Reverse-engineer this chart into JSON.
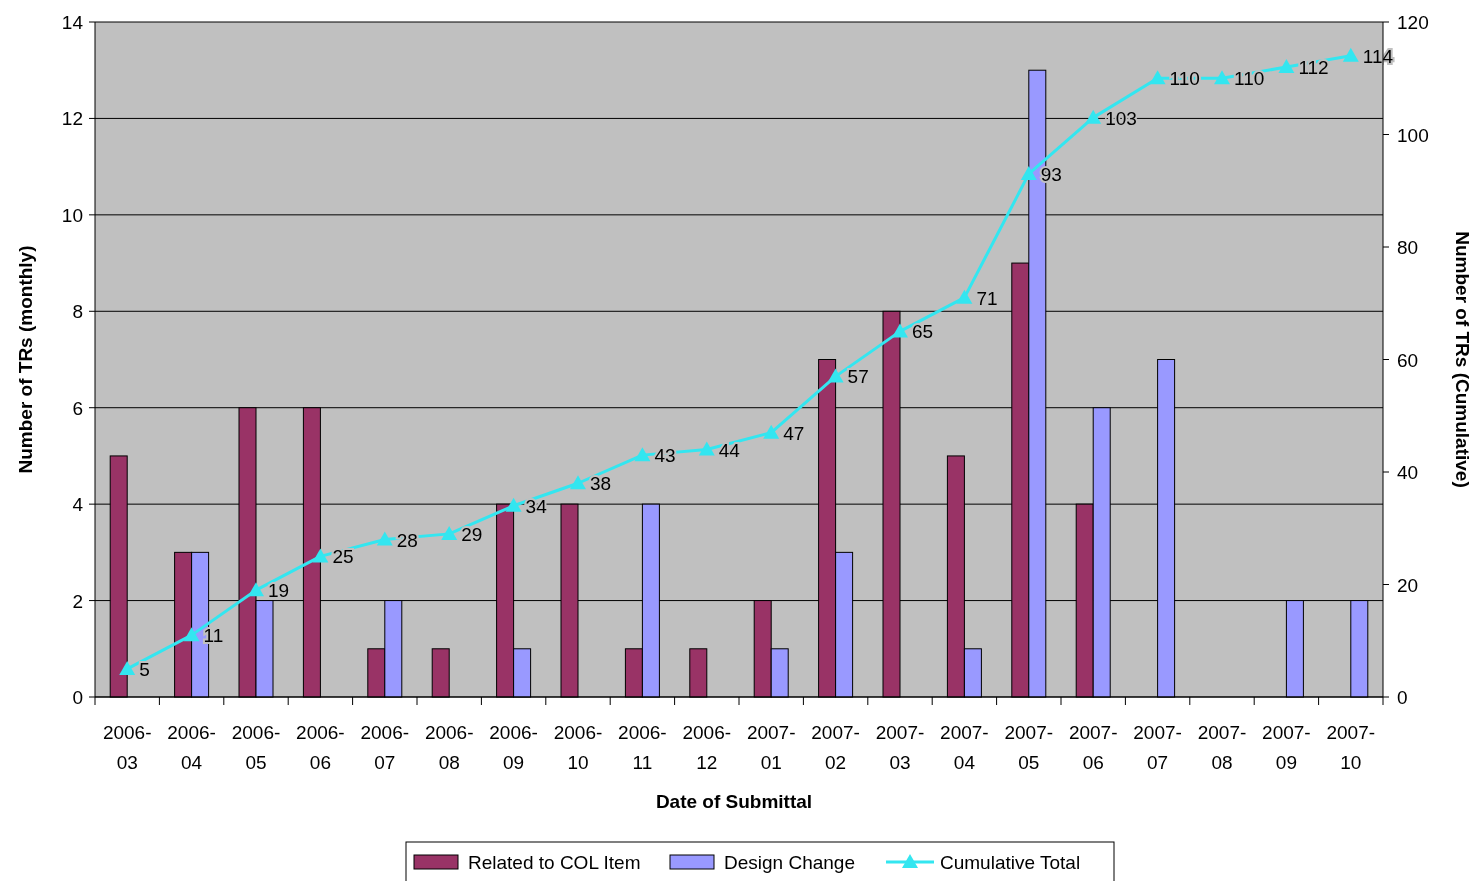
{
  "chart_data": {
    "type": "bar",
    "xlabel": "Date of Submittal",
    "ylabel": "Number of TRs (monthly)",
    "y2label": "Number of TRs (Cumulative)",
    "categories": [
      "2006-03",
      "2006-04",
      "2006-05",
      "2006-06",
      "2006-07",
      "2006-08",
      "2006-09",
      "2006-10",
      "2006-11",
      "2006-12",
      "2007-01",
      "2007-02",
      "2007-03",
      "2007-04",
      "2007-05",
      "2007-06",
      "2007-07",
      "2007-08",
      "2007-09",
      "2007-10"
    ],
    "series": [
      {
        "name": "Related to COL Item",
        "color": "#993366",
        "values": [
          5,
          3,
          6,
          6,
          1,
          1,
          4,
          4,
          1,
          1,
          2,
          7,
          8,
          5,
          9,
          4,
          null,
          null,
          null,
          null
        ]
      },
      {
        "name": "Design Change",
        "color": "#9999ff",
        "values": [
          null,
          3,
          2,
          null,
          2,
          null,
          1,
          null,
          4,
          null,
          1,
          3,
          null,
          1,
          13,
          6,
          7,
          null,
          2,
          2
        ]
      },
      {
        "name": "Cumulative Total",
        "type": "line",
        "axis": "y2",
        "color": "#33e6f0",
        "marker": "triangle",
        "values": [
          5,
          11,
          19,
          25,
          28,
          29,
          34,
          38,
          43,
          44,
          47,
          57,
          65,
          71,
          93,
          103,
          110,
          110,
          112,
          114
        ],
        "value_labels": [
          "5",
          "11",
          "19",
          "25",
          "28",
          "29",
          "34",
          "38",
          "43",
          "44",
          "47",
          "57",
          "65",
          "71",
          "93",
          "103",
          "110",
          "110",
          "112",
          "114"
        ]
      }
    ],
    "ylim": [
      0,
      14
    ],
    "yticks": [
      0,
      2,
      4,
      6,
      8,
      10,
      12,
      14
    ],
    "y2lim": [
      0,
      120
    ],
    "y2ticks": [
      0,
      20,
      40,
      60,
      80,
      100,
      120
    ],
    "grid": "y",
    "legend": "bottom"
  }
}
